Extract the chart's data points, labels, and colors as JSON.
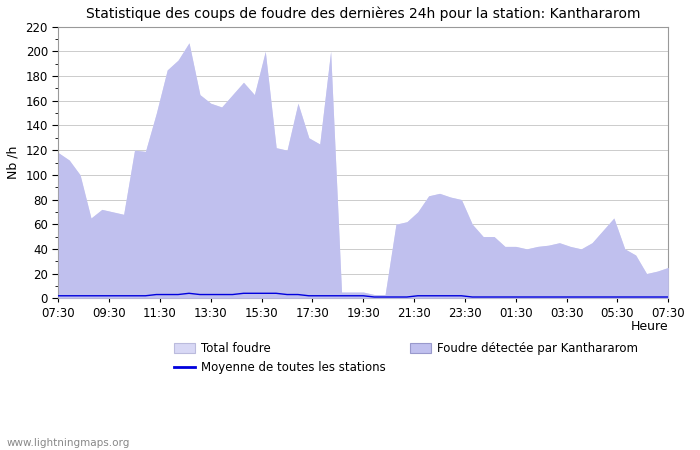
{
  "title": "Statistique des coups de foudre des dernières 24h pour la station: Kanthararom",
  "xlabel": "Heure",
  "ylabel": "Nb /h",
  "ylim": [
    0,
    220
  ],
  "yticks": [
    0,
    20,
    40,
    60,
    80,
    100,
    120,
    140,
    160,
    180,
    200,
    220
  ],
  "watermark": "www.lightningmaps.org",
  "x_labels": [
    "07:30",
    "09:30",
    "11:30",
    "13:30",
    "15:30",
    "17:30",
    "19:30",
    "21:30",
    "23:30",
    "01:30",
    "03:30",
    "05:30",
    "07:30"
  ],
  "fill_color_total": "#d8d8f5",
  "fill_color_detected": "#c0c0ee",
  "line_color_moyenne": "#0000dd",
  "legend_total": "Total foudre",
  "legend_detected": "Foudre détectée par Kanthararom",
  "legend_moyenne": "Moyenne de toutes les stations",
  "total_foudre": [
    118,
    112,
    100,
    65,
    72,
    70,
    68,
    120,
    119,
    150,
    185,
    193,
    207,
    165,
    158,
    155,
    165,
    175,
    165,
    200,
    122,
    120,
    158,
    130,
    125,
    200,
    5,
    5,
    5,
    3,
    3,
    60,
    62,
    70,
    83,
    85,
    82,
    80,
    60,
    50,
    50,
    42,
    42,
    40,
    42,
    43,
    45,
    42,
    40,
    45,
    55,
    65,
    40,
    35,
    20,
    22,
    25
  ],
  "detected_foudre": [
    118,
    112,
    100,
    65,
    72,
    70,
    68,
    120,
    119,
    150,
    185,
    193,
    207,
    165,
    158,
    155,
    165,
    175,
    165,
    200,
    122,
    120,
    158,
    130,
    125,
    200,
    5,
    5,
    5,
    3,
    3,
    60,
    62,
    70,
    83,
    85,
    82,
    80,
    60,
    50,
    50,
    42,
    42,
    40,
    42,
    43,
    45,
    42,
    40,
    45,
    55,
    65,
    40,
    35,
    20,
    22,
    25
  ],
  "moyenne": [
    2,
    2,
    2,
    2,
    2,
    2,
    2,
    2,
    2,
    3,
    3,
    3,
    4,
    3,
    3,
    3,
    3,
    4,
    4,
    4,
    4,
    3,
    3,
    2,
    2,
    2,
    2,
    2,
    2,
    1,
    1,
    1,
    1,
    2,
    2,
    2,
    2,
    2,
    1,
    1,
    1,
    1,
    1,
    1,
    1,
    1,
    1,
    1,
    1,
    1,
    1,
    1,
    1,
    1,
    1,
    1,
    1
  ],
  "background_color": "#ffffff",
  "grid_color": "#cccccc",
  "fig_width": 7.0,
  "fig_height": 4.5,
  "dpi": 100
}
